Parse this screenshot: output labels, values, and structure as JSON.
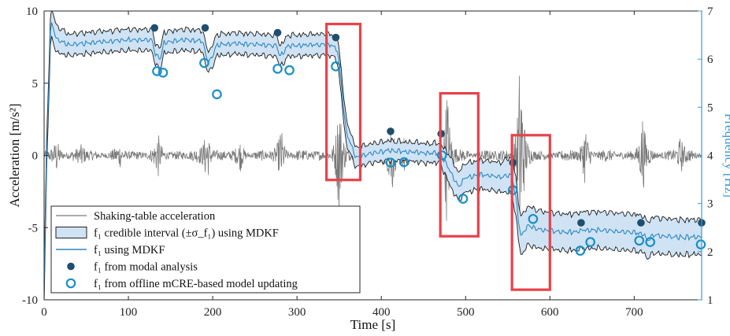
{
  "chart_data": {
    "type": "line",
    "title": "",
    "xlabel": "Time [s]",
    "ylabel_left": "Acceleration [m/s²]",
    "ylabel_right": "Frequency [Hz]",
    "xlim": [
      0,
      780
    ],
    "ylim_left": [
      -10,
      10
    ],
    "ylim_right": [
      1,
      7
    ],
    "xticks": [
      "0",
      "100",
      "200",
      "300",
      "400",
      "500",
      "600",
      "700"
    ],
    "xtick_values": [
      0,
      100,
      200,
      300,
      400,
      500,
      600,
      700
    ],
    "yticks_left": [
      "10",
      "5",
      "0",
      "-5",
      "-10"
    ],
    "ytick_values_left": [
      10,
      5,
      0,
      -5,
      -10
    ],
    "yticks_right": [
      "7",
      "6",
      "5",
      "4",
      "3",
      "2",
      "1"
    ],
    "ytick_values_right": [
      7,
      6,
      5,
      4,
      3,
      2,
      1
    ],
    "grid": false,
    "legend_position": "bottom-left",
    "legend": [
      "Shaking-table acceleration",
      "f₁ credible interval (±σ_f₁) using MDKF",
      "f₁ using MDKF",
      "f₁ from modal analysis",
      "f₁ from offline mCRE-based model updating"
    ],
    "colors": {
      "acceleration": "#7a7a7a",
      "mdkf_line": "#2e86c1",
      "interval_fill": "#cfe3f4",
      "interval_edge": "#1a1a1a",
      "modal_marker": "#1f4e6e",
      "mcre_marker": "#1a8fc6",
      "highlight_box": "#e8424a",
      "right_axis": "#3a9ad9"
    },
    "highlight_boxes_x": [
      [
        335,
        375
      ],
      [
        470,
        515
      ],
      [
        555,
        600
      ]
    ],
    "highlight_boxes_y_left": [
      [
        -1.7,
        9.1
      ],
      [
        -5.6,
        4.3
      ],
      [
        -9.3,
        1.4
      ]
    ],
    "acceleration_bursts": [
      {
        "t": 15,
        "a": 1.0
      },
      {
        "t": 45,
        "a": 0.6
      },
      {
        "t": 90,
        "a": 0.5
      },
      {
        "t": 135,
        "a": 1.3
      },
      {
        "t": 193,
        "a": 2.2
      },
      {
        "t": 233,
        "a": 0.8
      },
      {
        "t": 281,
        "a": 1.9
      },
      {
        "t": 350,
        "a": 4.5
      },
      {
        "t": 412,
        "a": 3.6
      },
      {
        "t": 428,
        "a": 1.4
      },
      {
        "t": 478,
        "a": 5.5
      },
      {
        "t": 565,
        "a": 8.8
      },
      {
        "t": 642,
        "a": 2.2
      },
      {
        "t": 710,
        "a": 2.8
      },
      {
        "t": 755,
        "a": 1.2
      }
    ],
    "mdkf_f1": {
      "t": [
        0,
        3,
        8,
        15,
        30,
        60,
        100,
        128,
        132,
        138,
        142,
        165,
        188,
        193,
        197,
        205,
        230,
        260,
        276,
        280,
        290,
        320,
        340,
        348,
        352,
        358,
        370,
        378,
        390,
        410,
        430,
        450,
        470,
        478,
        485,
        492,
        500,
        520,
        540,
        555,
        560,
        563,
        566,
        570,
        574,
        580,
        590,
        610,
        630,
        640,
        660,
        700,
        712,
        716,
        722,
        750,
        780
      ],
      "f": [
        1.2,
        4.0,
        6.8,
        6.4,
        6.3,
        6.35,
        6.4,
        6.4,
        6.1,
        6.0,
        6.35,
        6.4,
        6.38,
        6.0,
        5.95,
        6.3,
        6.32,
        6.3,
        6.28,
        6.05,
        6.28,
        6.3,
        6.3,
        6.2,
        5.6,
        4.5,
        3.95,
        4.0,
        4.05,
        4.1,
        4.08,
        4.05,
        4.05,
        3.8,
        3.55,
        3.35,
        3.55,
        3.6,
        3.55,
        3.6,
        3.1,
        2.6,
        2.3,
        2.45,
        2.55,
        2.5,
        2.45,
        2.42,
        2.4,
        2.45,
        2.45,
        2.4,
        2.35,
        2.22,
        2.35,
        2.3,
        2.3
      ]
    },
    "mdkf_halfwidth": {
      "t": [
        0,
        8,
        30,
        345,
        352,
        370,
        470,
        480,
        500,
        540,
        560,
        575,
        600,
        700,
        780
      ],
      "w": [
        0.3,
        0.3,
        0.22,
        0.22,
        0.28,
        0.2,
        0.2,
        0.3,
        0.3,
        0.3,
        0.4,
        0.4,
        0.38,
        0.38,
        0.36
      ]
    },
    "modal_analysis_f1": {
      "t": [
        131,
        191,
        277,
        346,
        411,
        471,
        556,
        637,
        708,
        780
      ],
      "f": [
        6.65,
        6.65,
        6.55,
        6.45,
        4.5,
        4.45,
        3.85,
        2.6,
        2.6,
        2.6
      ]
    },
    "mcre_f1": {
      "t": [
        134,
        141,
        190,
        205,
        277,
        291,
        346,
        411,
        427,
        472,
        497,
        556,
        580,
        636,
        648,
        706,
        719,
        779
      ],
      "f": [
        5.75,
        5.72,
        5.92,
        5.27,
        5.8,
        5.77,
        5.85,
        3.85,
        3.86,
        4.0,
        3.1,
        3.28,
        2.68,
        2.02,
        2.2,
        2.23,
        2.2,
        2.15
      ]
    }
  }
}
